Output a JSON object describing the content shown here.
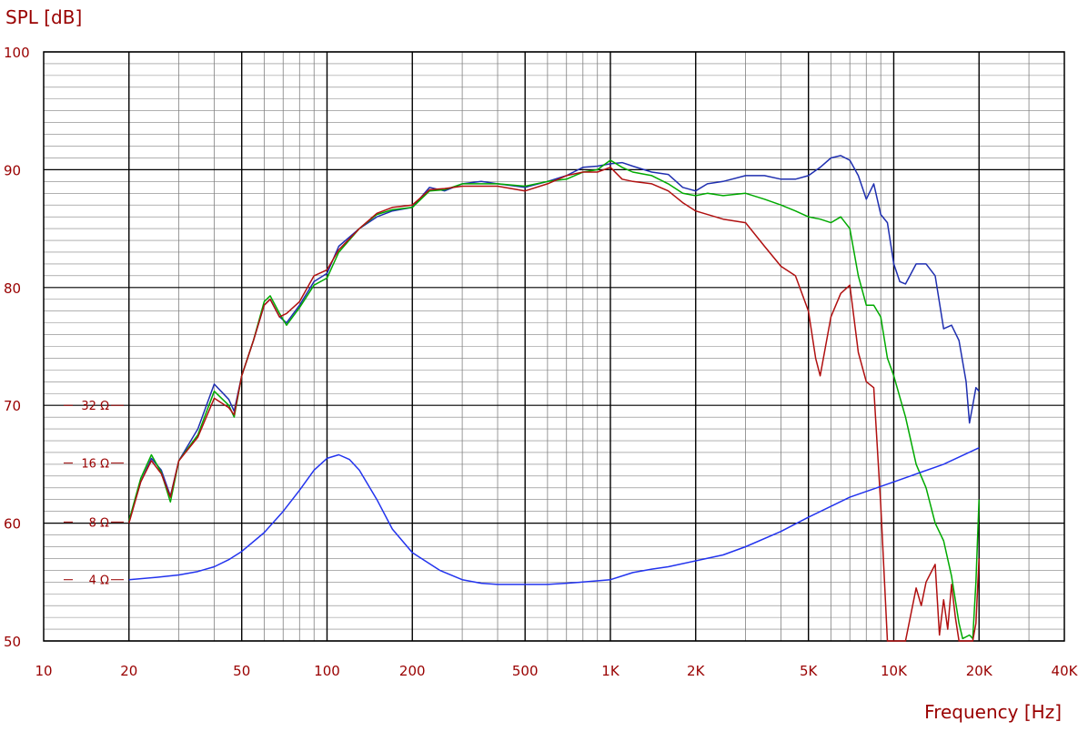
{
  "chart_data": {
    "type": "line",
    "ylabel": "SPL [dB]",
    "xlabel": "Frequency  [Hz]",
    "x_scale": "log",
    "xlim": [
      10,
      40000
    ],
    "ylim": [
      50,
      100
    ],
    "x_ticks": [
      {
        "value": 10,
        "label": "10"
      },
      {
        "value": 20,
        "label": "20"
      },
      {
        "value": 50,
        "label": "50"
      },
      {
        "value": 100,
        "label": "100"
      },
      {
        "value": 200,
        "label": "200"
      },
      {
        "value": 500,
        "label": "500"
      },
      {
        "value": 1000,
        "label": "1K"
      },
      {
        "value": 2000,
        "label": "2K"
      },
      {
        "value": 5000,
        "label": "5K"
      },
      {
        "value": 10000,
        "label": "10K"
      },
      {
        "value": 20000,
        "label": "20K"
      },
      {
        "value": 40000,
        "label": "40K"
      }
    ],
    "y_ticks": [
      {
        "value": 50,
        "label": "50"
      },
      {
        "value": 60,
        "label": "60"
      },
      {
        "value": 70,
        "label": "70"
      },
      {
        "value": 80,
        "label": "80"
      },
      {
        "value": 90,
        "label": "90"
      },
      {
        "value": 100,
        "label": "100"
      }
    ],
    "impedance_ticks": [
      {
        "spl_value": 55.2,
        "label": "4 Ω"
      },
      {
        "spl_value": 60.1,
        "label": "8 Ω"
      },
      {
        "spl_value": 65.1,
        "label": "16 Ω"
      },
      {
        "spl_value": 70.0,
        "label": "32 Ω"
      }
    ],
    "grid": true,
    "colors": {
      "axis_text": "#990000",
      "grid": "#000000",
      "minor_grid": "#808080"
    },
    "series": [
      {
        "color": "#1f2fb0",
        "points": [
          [
            20,
            60.2
          ],
          [
            22,
            63.5
          ],
          [
            24,
            65.5
          ],
          [
            26,
            64.5
          ],
          [
            28,
            62.3
          ],
          [
            30,
            65.3
          ],
          [
            35,
            68
          ],
          [
            40,
            71.8
          ],
          [
            45,
            70.5
          ],
          [
            47,
            69.5
          ],
          [
            50,
            72.5
          ],
          [
            55,
            75.5
          ],
          [
            60,
            78.5
          ],
          [
            63,
            79
          ],
          [
            68,
            77.5
          ],
          [
            72,
            77
          ],
          [
            80,
            78.5
          ],
          [
            90,
            80.5
          ],
          [
            100,
            81.2
          ],
          [
            110,
            83.5
          ],
          [
            130,
            85
          ],
          [
            150,
            86
          ],
          [
            170,
            86.5
          ],
          [
            200,
            86.8
          ],
          [
            230,
            88.5
          ],
          [
            260,
            88.2
          ],
          [
            300,
            88.8
          ],
          [
            350,
            89
          ],
          [
            400,
            88.8
          ],
          [
            500,
            88.5
          ],
          [
            600,
            89
          ],
          [
            700,
            89.5
          ],
          [
            800,
            90.2
          ],
          [
            900,
            90.3
          ],
          [
            1000,
            90.5
          ],
          [
            1100,
            90.6
          ],
          [
            1200,
            90.3
          ],
          [
            1400,
            89.8
          ],
          [
            1600,
            89.6
          ],
          [
            1800,
            88.5
          ],
          [
            2000,
            88.2
          ],
          [
            2200,
            88.8
          ],
          [
            2500,
            89
          ],
          [
            3000,
            89.5
          ],
          [
            3500,
            89.5
          ],
          [
            4000,
            89.2
          ],
          [
            4500,
            89.2
          ],
          [
            5000,
            89.5
          ],
          [
            5500,
            90.2
          ],
          [
            6000,
            91
          ],
          [
            6500,
            91.2
          ],
          [
            7000,
            90.8
          ],
          [
            7500,
            89.5
          ],
          [
            8000,
            87.5
          ],
          [
            8500,
            88.8
          ],
          [
            9000,
            86.2
          ],
          [
            9500,
            85.5
          ],
          [
            10000,
            82
          ],
          [
            10500,
            80.5
          ],
          [
            11000,
            80.3
          ],
          [
            12000,
            82
          ],
          [
            13000,
            82
          ],
          [
            14000,
            81
          ],
          [
            15000,
            76.5
          ],
          [
            16000,
            76.8
          ],
          [
            17000,
            75.5
          ],
          [
            18000,
            72
          ],
          [
            18500,
            68.5
          ],
          [
            19000,
            70
          ],
          [
            19500,
            71.5
          ],
          [
            20000,
            71.2
          ]
        ]
      },
      {
        "color": "#00aa00",
        "points": [
          [
            20,
            60.2
          ],
          [
            22,
            63.8
          ],
          [
            24,
            65.8
          ],
          [
            26,
            64.3
          ],
          [
            28,
            61.8
          ],
          [
            30,
            65.3
          ],
          [
            35,
            67.5
          ],
          [
            40,
            71.2
          ],
          [
            45,
            70
          ],
          [
            47,
            69
          ],
          [
            50,
            72.5
          ],
          [
            55,
            75.5
          ],
          [
            60,
            78.8
          ],
          [
            63,
            79.3
          ],
          [
            68,
            77.8
          ],
          [
            72,
            76.8
          ],
          [
            80,
            78.3
          ],
          [
            90,
            80.2
          ],
          [
            100,
            80.8
          ],
          [
            110,
            83
          ],
          [
            130,
            85
          ],
          [
            150,
            86.2
          ],
          [
            170,
            86.6
          ],
          [
            200,
            86.8
          ],
          [
            230,
            88.2
          ],
          [
            260,
            88.3
          ],
          [
            300,
            88.8
          ],
          [
            350,
            88.8
          ],
          [
            400,
            88.8
          ],
          [
            500,
            88.6
          ],
          [
            600,
            89
          ],
          [
            700,
            89.2
          ],
          [
            800,
            89.8
          ],
          [
            900,
            90
          ],
          [
            1000,
            90.8
          ],
          [
            1100,
            90.2
          ],
          [
            1200,
            89.8
          ],
          [
            1400,
            89.5
          ],
          [
            1600,
            88.8
          ],
          [
            1800,
            88
          ],
          [
            2000,
            87.8
          ],
          [
            2200,
            88
          ],
          [
            2500,
            87.8
          ],
          [
            3000,
            88
          ],
          [
            3500,
            87.5
          ],
          [
            4000,
            87
          ],
          [
            4500,
            86.5
          ],
          [
            5000,
            86
          ],
          [
            5500,
            85.8
          ],
          [
            6000,
            85.5
          ],
          [
            6500,
            86
          ],
          [
            7000,
            85
          ],
          [
            7500,
            81
          ],
          [
            8000,
            78.5
          ],
          [
            8500,
            78.5
          ],
          [
            9000,
            77.5
          ],
          [
            9500,
            74
          ],
          [
            10000,
            72.5
          ],
          [
            11000,
            69
          ],
          [
            12000,
            65
          ],
          [
            13000,
            63
          ],
          [
            14000,
            60
          ],
          [
            15000,
            58.5
          ],
          [
            16000,
            55.5
          ],
          [
            17000,
            51.5
          ],
          [
            17500,
            50.2
          ],
          [
            18500,
            50.5
          ],
          [
            19000,
            50.2
          ],
          [
            19500,
            55
          ],
          [
            20000,
            62
          ]
        ]
      },
      {
        "color": "#b01010",
        "points": [
          [
            20,
            60
          ],
          [
            22,
            63.5
          ],
          [
            24,
            65.3
          ],
          [
            26,
            64.2
          ],
          [
            28,
            62.2
          ],
          [
            30,
            65.3
          ],
          [
            35,
            67.3
          ],
          [
            40,
            70.6
          ],
          [
            45,
            69.8
          ],
          [
            47,
            69.2
          ],
          [
            50,
            72.5
          ],
          [
            55,
            75.5
          ],
          [
            60,
            78.5
          ],
          [
            63,
            79
          ],
          [
            68,
            77.5
          ],
          [
            72,
            77.8
          ],
          [
            80,
            78.8
          ],
          [
            90,
            81
          ],
          [
            100,
            81.5
          ],
          [
            110,
            83.2
          ],
          [
            130,
            85
          ],
          [
            150,
            86.3
          ],
          [
            170,
            86.8
          ],
          [
            200,
            87
          ],
          [
            230,
            88.3
          ],
          [
            260,
            88.4
          ],
          [
            300,
            88.6
          ],
          [
            350,
            88.6
          ],
          [
            400,
            88.6
          ],
          [
            500,
            88.2
          ],
          [
            600,
            88.8
          ],
          [
            700,
            89.5
          ],
          [
            800,
            89.8
          ],
          [
            900,
            89.8
          ],
          [
            1000,
            90.2
          ],
          [
            1100,
            89.2
          ],
          [
            1200,
            89
          ],
          [
            1400,
            88.8
          ],
          [
            1600,
            88.2
          ],
          [
            1800,
            87.2
          ],
          [
            2000,
            86.5
          ],
          [
            2500,
            85.8
          ],
          [
            3000,
            85.5
          ],
          [
            3500,
            83.5
          ],
          [
            4000,
            81.8
          ],
          [
            4500,
            81
          ],
          [
            5000,
            78
          ],
          [
            5300,
            74
          ],
          [
            5500,
            72.5
          ],
          [
            6000,
            77.5
          ],
          [
            6500,
            79.5
          ],
          [
            7000,
            80.2
          ],
          [
            7500,
            74.5
          ],
          [
            8000,
            72
          ],
          [
            8500,
            71.5
          ],
          [
            9000,
            61.5
          ],
          [
            9500,
            50
          ],
          [
            10000,
            50
          ],
          [
            11000,
            50
          ],
          [
            12000,
            54.5
          ],
          [
            12500,
            53
          ],
          [
            13000,
            55
          ],
          [
            14000,
            56.5
          ],
          [
            14500,
            50.5
          ],
          [
            15000,
            53.5
          ],
          [
            15500,
            51
          ],
          [
            16000,
            54.8
          ],
          [
            16500,
            52
          ],
          [
            17000,
            50
          ],
          [
            18000,
            50
          ],
          [
            19000,
            50
          ],
          [
            19500,
            51.5
          ],
          [
            20000,
            57
          ]
        ]
      },
      {
        "color": "#2233ee",
        "points": [
          [
            20,
            55.2
          ],
          [
            25,
            55.4
          ],
          [
            30,
            55.6
          ],
          [
            35,
            55.9
          ],
          [
            40,
            56.3
          ],
          [
            45,
            56.9
          ],
          [
            50,
            57.6
          ],
          [
            60,
            59.2
          ],
          [
            70,
            61
          ],
          [
            80,
            62.8
          ],
          [
            90,
            64.5
          ],
          [
            100,
            65.5
          ],
          [
            110,
            65.8
          ],
          [
            120,
            65.4
          ],
          [
            130,
            64.5
          ],
          [
            150,
            62
          ],
          [
            170,
            59.5
          ],
          [
            200,
            57.5
          ],
          [
            250,
            56
          ],
          [
            300,
            55.2
          ],
          [
            350,
            54.9
          ],
          [
            400,
            54.8
          ],
          [
            500,
            54.8
          ],
          [
            600,
            54.8
          ],
          [
            700,
            54.9
          ],
          [
            800,
            55
          ],
          [
            1000,
            55.2
          ],
          [
            1200,
            55.8
          ],
          [
            1400,
            56.1
          ],
          [
            1600,
            56.3
          ],
          [
            2000,
            56.8
          ],
          [
            2500,
            57.3
          ],
          [
            3000,
            58
          ],
          [
            4000,
            59.3
          ],
          [
            5000,
            60.5
          ],
          [
            7000,
            62.2
          ],
          [
            10000,
            63.5
          ],
          [
            15000,
            65
          ],
          [
            20000,
            66.4
          ]
        ]
      }
    ]
  }
}
